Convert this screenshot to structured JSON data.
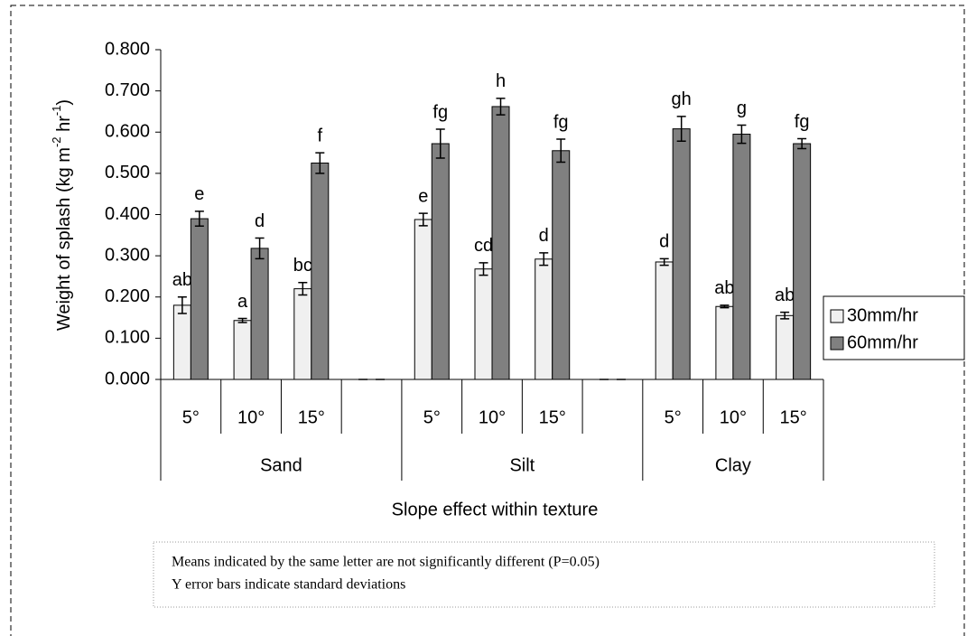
{
  "chart_data": {
    "type": "bar",
    "y_label": {
      "text": "Weight of splash (kg m",
      "sup1": "-2",
      "mid": " hr",
      "sup2": "-1",
      "end": ")"
    },
    "x_label": "Slope effect within texture",
    "categories": [
      "5°",
      "10°",
      "15°",
      null,
      "5°",
      "10°",
      "15°",
      null,
      "5°",
      "10°",
      "15°"
    ],
    "groups": [
      {
        "name": "Sand",
        "size": 4
      },
      {
        "name": "Silt",
        "size": 4
      },
      {
        "name": "Clay",
        "size": 3
      }
    ],
    "series": [
      {
        "name": "30mm/hr",
        "color": "#f0f0f0",
        "values": [
          0.18,
          0.143,
          0.22,
          0,
          0.388,
          0.268,
          0.292,
          0,
          0.285,
          0.177,
          0.155
        ],
        "errors": [
          0.02,
          0.005,
          0.015,
          0,
          0.015,
          0.015,
          0.015,
          0,
          0.008,
          0.003,
          0.008
        ],
        "letters": [
          "ab",
          "a",
          "bc",
          null,
          "e",
          "cd",
          "d",
          null,
          "d",
          "ab",
          "ab"
        ]
      },
      {
        "name": "60mm/hr",
        "color": "#808080",
        "values": [
          0.39,
          0.318,
          0.525,
          0,
          0.572,
          0.662,
          0.555,
          0,
          0.608,
          0.595,
          0.572
        ],
        "errors": [
          0.018,
          0.025,
          0.025,
          0,
          0.035,
          0.02,
          0.028,
          0,
          0.03,
          0.022,
          0.012
        ],
        "letters": [
          "e",
          "d",
          "f",
          null,
          "fg",
          "h",
          "fg",
          null,
          "gh",
          "g",
          "fg"
        ]
      }
    ],
    "ylim": [
      0,
      0.8
    ],
    "yticks": [
      {
        "value": 0,
        "label": "0.000"
      },
      {
        "value": 0.1,
        "label": "0.100"
      },
      {
        "value": 0.2,
        "label": "0.200"
      },
      {
        "value": 0.3,
        "label": "0.300"
      },
      {
        "value": 0.4,
        "label": "0.400"
      },
      {
        "value": 0.5,
        "label": "0.500"
      },
      {
        "value": 0.6,
        "label": "0.600"
      },
      {
        "value": 0.7,
        "label": "0.700"
      },
      {
        "value": 0.8,
        "label": "0.800"
      }
    ],
    "legend": "right",
    "notes": [
      "Means indicated by the same letter are not significantly different (P=0.05)",
      "Y error bars indicate standard deviations"
    ]
  }
}
